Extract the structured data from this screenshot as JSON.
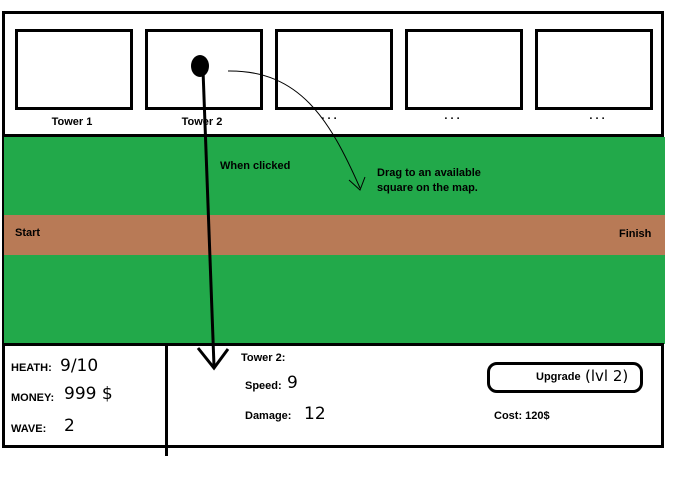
{
  "tower_bar": {
    "slots": [
      {
        "label": "Tower 1"
      },
      {
        "label": "Tower 2"
      },
      {
        "label": ". . ."
      },
      {
        "label": ". . ."
      },
      {
        "label": ". . ."
      }
    ]
  },
  "annotations": {
    "when_clicked": "When clicked",
    "drag_hint_line1": "Drag to an available",
    "drag_hint_line2": "square on the map."
  },
  "map": {
    "start_label": "Start",
    "finish_label": "Finish",
    "grass_color": "#22a94a",
    "path_color": "#b87a56"
  },
  "stats": {
    "health_label": "HEATH:",
    "health_value": "9/10",
    "money_label": "MONEY:",
    "money_value": "999 $",
    "wave_label": "WAVE:",
    "wave_value": "2"
  },
  "tower_info": {
    "title": "Tower 2:",
    "speed_label": "Speed:",
    "speed_value": "9",
    "damage_label": "Damage:",
    "damage_value": "12",
    "upgrade_label": "Upgrade",
    "upgrade_levels": "(lvl 2)",
    "cost_label": "Cost: 120$"
  }
}
